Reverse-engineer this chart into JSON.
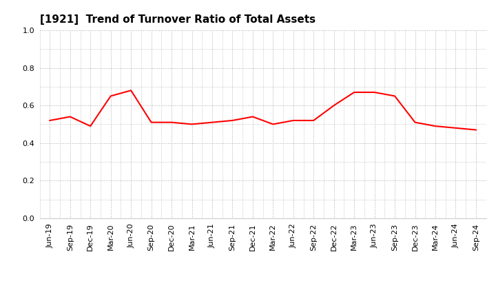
{
  "title": "[1921]  Trend of Turnover Ratio of Total Assets",
  "labels": [
    "Jun-19",
    "Sep-19",
    "Dec-19",
    "Mar-20",
    "Jun-20",
    "Sep-20",
    "Dec-20",
    "Mar-21",
    "Jun-21",
    "Sep-21",
    "Dec-21",
    "Mar-22",
    "Jun-22",
    "Sep-22",
    "Dec-22",
    "Mar-23",
    "Jun-23",
    "Sep-23",
    "Dec-23",
    "Mar-24",
    "Jun-24",
    "Sep-24"
  ],
  "values": [
    0.52,
    0.54,
    0.49,
    0.65,
    0.68,
    0.51,
    0.51,
    0.5,
    0.51,
    0.52,
    0.54,
    0.5,
    0.52,
    0.52,
    0.6,
    0.67,
    0.67,
    0.65,
    0.51,
    0.49,
    0.48,
    0.47
  ],
  "line_color": "#FF0000",
  "line_width": 1.5,
  "ylim": [
    0.0,
    1.0
  ],
  "yticks": [
    0.0,
    0.2,
    0.4,
    0.6,
    0.8,
    1.0
  ],
  "grid_color": "#aaaaaa",
  "background_color": "#ffffff",
  "title_fontsize": 11,
  "tick_fontsize": 8,
  "title_color": "#000000"
}
